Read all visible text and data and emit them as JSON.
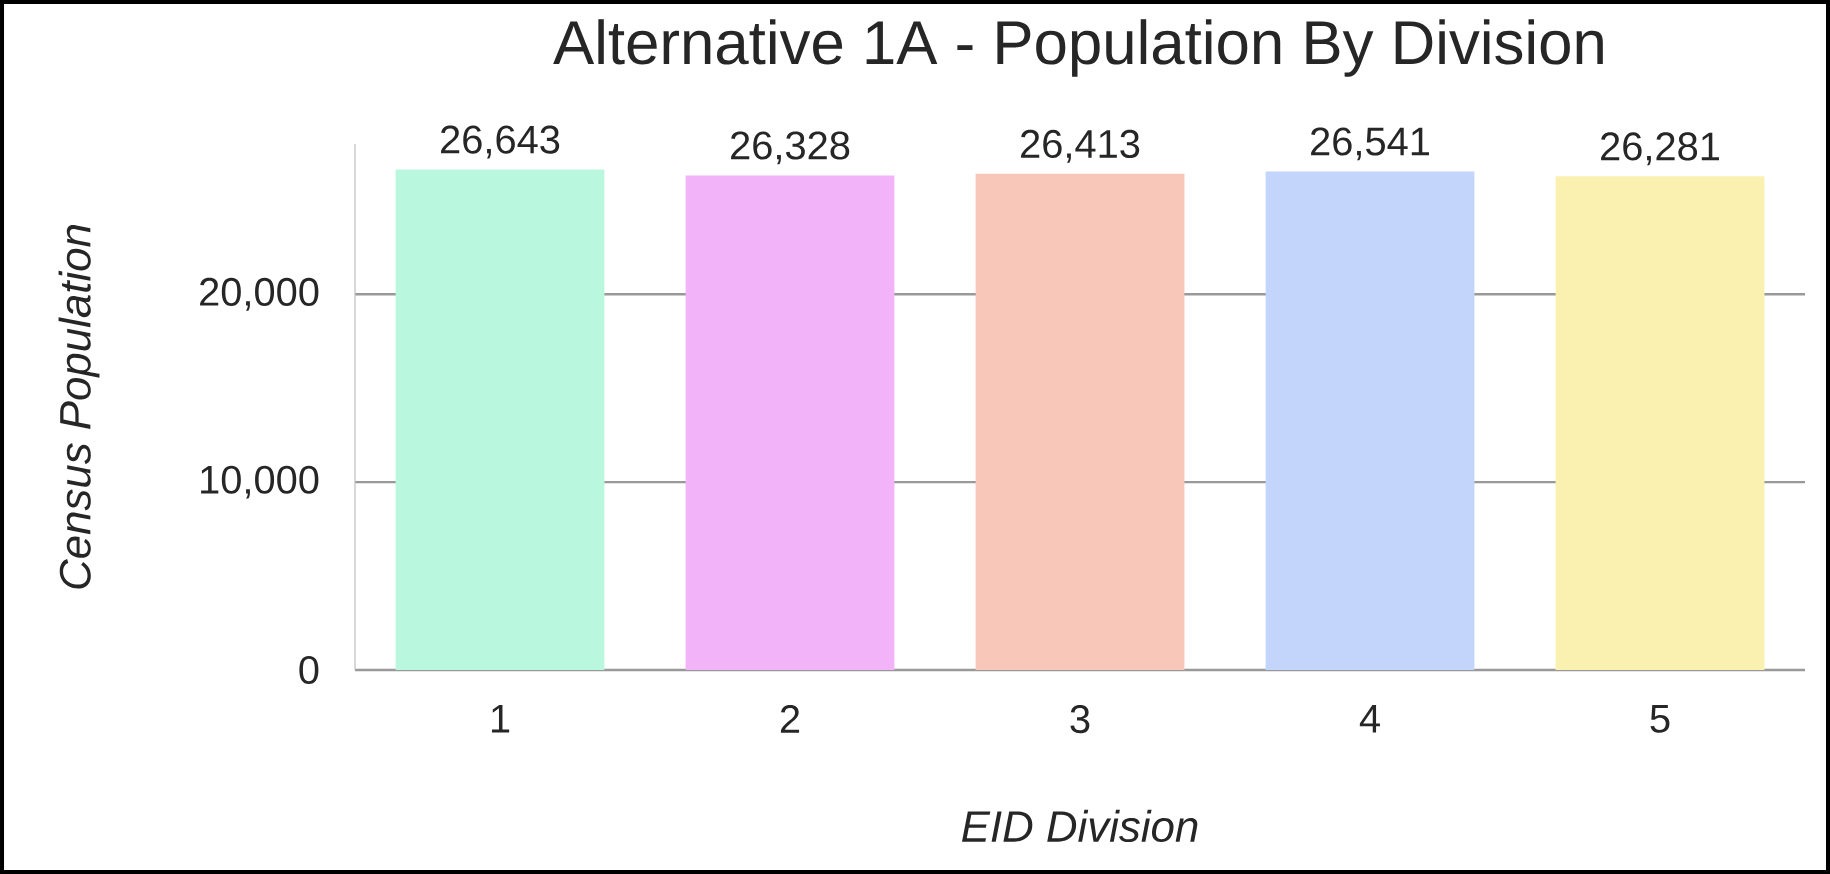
{
  "chart_data": {
    "type": "bar",
    "title": "Alternative 1A - Population By Division",
    "xlabel": "EID Division",
    "ylabel": "Census Population",
    "categories": [
      "1",
      "2",
      "3",
      "4",
      "5"
    ],
    "values": [
      26643,
      26328,
      26413,
      26541,
      26281
    ],
    "colors": [
      "#b9f8de",
      "#f2b3f9",
      "#f8c7b9",
      "#c4d5fb",
      "#faf1b0"
    ],
    "value_labels": [
      "26,643",
      "26,328",
      "26,413",
      "26,541",
      "26,281"
    ],
    "ylim": [
      0,
      28000
    ],
    "yticks": [
      {
        "value": 0,
        "label": "0"
      },
      {
        "value": 10000,
        "label": "10,000"
      },
      {
        "value": 20000,
        "label": "20,000"
      }
    ],
    "grid": "y"
  }
}
